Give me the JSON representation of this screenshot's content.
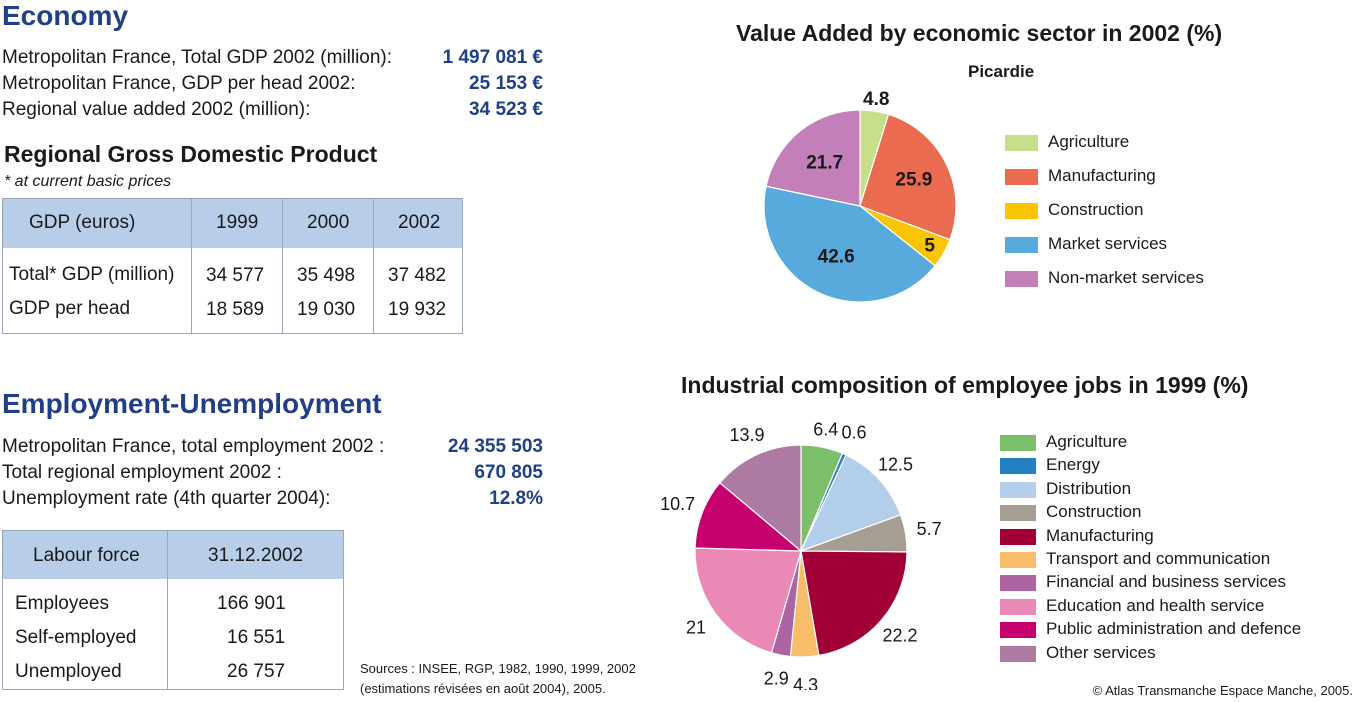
{
  "economy": {
    "title": "Economy",
    "rows": [
      {
        "label": "Metropolitan France, Total GDP 2002 (million):",
        "value": "1 497 081 €"
      },
      {
        "label": "Metropolitan France, GDP per head 2002:",
        "value": "25 153 €"
      },
      {
        "label": "Regional value added 2002 (million):",
        "value": "34 523 €"
      }
    ]
  },
  "gdp_table": {
    "title": "Regional Gross Domestic Product",
    "note": "* at current basic prices",
    "headers": [
      "GDP (euros)",
      "1999",
      "2000",
      "2002"
    ],
    "rows": [
      {
        "label": "Total* GDP (million)",
        "values": [
          "34 577",
          "35 498",
          "37 482"
        ]
      },
      {
        "label": "GDP per head",
        "values": [
          "18 589",
          "19 030",
          "19 932"
        ]
      }
    ]
  },
  "employment": {
    "title": "Employment-Unemployment",
    "rows": [
      {
        "label": "Metropolitan France, total employment 2002 :",
        "value": "24 355 503"
      },
      {
        "label": "Total regional employment 2002 :",
        "value": "670 805"
      },
      {
        "label": "Unemployment rate (4th quarter 2004):",
        "value": "12.8%"
      }
    ]
  },
  "labour_table": {
    "headers": [
      "Labour force",
      "31.12.2002"
    ],
    "rows": [
      {
        "label": "Employees",
        "value": "166 901"
      },
      {
        "label": "Self-employed",
        "value": "16 551"
      },
      {
        "label": "Unemployed",
        "value": "26 757"
      }
    ]
  },
  "sources": [
    "Sources : INSEE, RGP, 1982, 1990, 1999, 2002",
    "(estimations révisées en août 2004), 2005."
  ],
  "copyright": "© Atlas Transmanche Espace Manche, 2005.",
  "chart_data": [
    {
      "type": "pie",
      "title": "Value Added by economic sector in 2002 (%)",
      "subtitle": "Picardie",
      "categories": [
        "Agriculture",
        "Manufacturing",
        "Construction",
        "Market services",
        "Non-market services"
      ],
      "values": [
        4.8,
        25.9,
        5,
        42.6,
        21.7
      ],
      "labels": [
        "4.8",
        "25.9",
        "5",
        "42.6",
        "21.7"
      ],
      "colors": [
        "#c7df8a",
        "#ea6b50",
        "#f9c400",
        "#58a9dc",
        "#c27fb8"
      ],
      "legend": "right"
    },
    {
      "type": "pie",
      "title": "Industrial composition of employee jobs in 1999 (%)",
      "categories": [
        "Agriculture",
        "Energy",
        "Distribution",
        "Construction",
        "Manufacturing",
        "Transport and communication",
        "Financial and business services",
        "Education and health service",
        "Public administration and defence",
        "Other services"
      ],
      "values": [
        6.4,
        0.6,
        12.5,
        5.7,
        22.2,
        4.3,
        2.9,
        21,
        10.7,
        13.9
      ],
      "labels": [
        "6.4",
        "0.6",
        "12.5",
        "5.7",
        "22.2",
        "4.3",
        "2.9",
        "21",
        "10.7",
        "13.9"
      ],
      "colors": [
        "#7cbf6a",
        "#2480c5",
        "#b3ceeb",
        "#a59e93",
        "#a10036",
        "#f8bd6a",
        "#ac64a3",
        "#ea88b6",
        "#c8006f",
        "#ad7ba1"
      ],
      "legend": "right"
    }
  ]
}
